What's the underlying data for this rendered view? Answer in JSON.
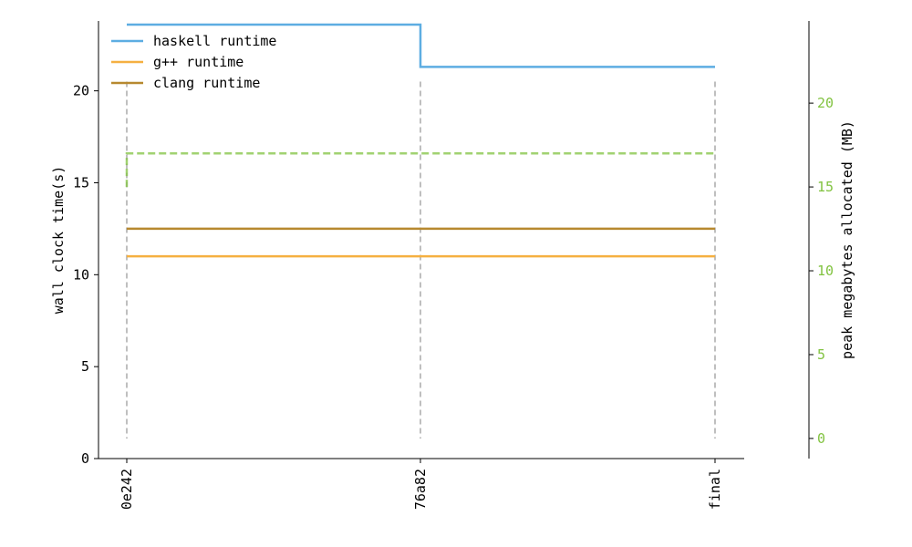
{
  "chart_data": {
    "type": "line",
    "categories": [
      "0e242",
      "76a82",
      "final"
    ],
    "series": [
      {
        "name": "haskell runtime",
        "axis": "left",
        "color": "#5dade2",
        "values": [
          23.6,
          21.3,
          21.3
        ]
      },
      {
        "name": "g++ runtime",
        "axis": "left",
        "color": "#f5b041",
        "values": [
          11.0,
          11.0,
          11.0
        ]
      },
      {
        "name": "clang runtime",
        "axis": "left",
        "color": "#b7892f",
        "values": [
          12.5,
          12.5,
          12.5
        ]
      },
      {
        "name": "",
        "axis": "right",
        "color": "#82c341",
        "values": [
          17.0,
          17.0,
          17.0
        ],
        "start_value": 15.0
      }
    ],
    "left_axis": {
      "label": "wall clock time(s)",
      "range": [
        0,
        23.8
      ],
      "ticks": [
        0,
        5,
        10,
        15,
        20
      ]
    },
    "right_axis": {
      "label": "peak megabytes allocated (MB)",
      "range": [
        -1.2,
        24.9
      ],
      "ticks": [
        0,
        5,
        10,
        15,
        20
      ],
      "color": "#82c341"
    },
    "marker_lines": {
      "range": [
        0,
        20.5
      ],
      "color": "#aaaaaa"
    },
    "legend": {
      "placement": "top-left"
    },
    "grid": false
  }
}
